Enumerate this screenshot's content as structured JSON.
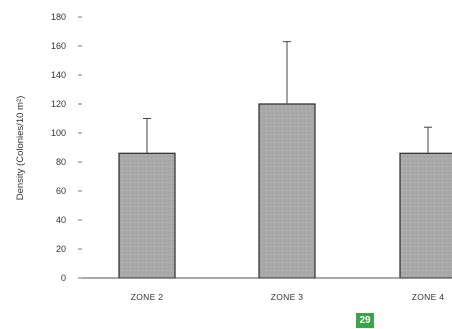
{
  "chart_data": {
    "type": "bar",
    "categories": [
      "ZONE 2",
      "ZONE 3",
      "ZONE 4"
    ],
    "values": [
      86,
      120,
      86
    ],
    "error_upper": [
      110,
      163,
      104
    ],
    "ylabel": "Density (Colonies/10 m²)",
    "ylim": [
      0,
      180
    ],
    "yticks": [
      0,
      20,
      40,
      60,
      80,
      100,
      120,
      140,
      160,
      180
    ],
    "bar_color": "#a8a8a8",
    "grid": false,
    "legend": "none"
  },
  "page_number": "29",
  "colors": {
    "badge": "#3aa547",
    "axis": "#555555"
  }
}
